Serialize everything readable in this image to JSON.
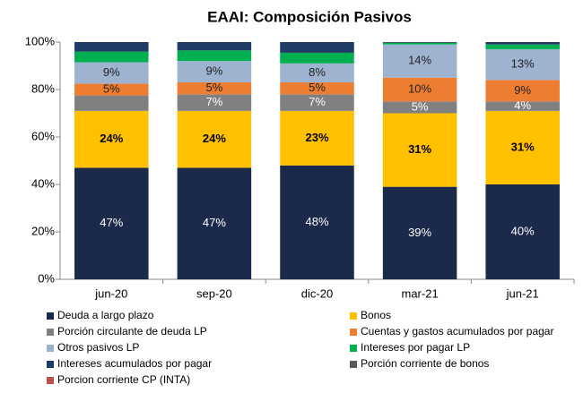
{
  "chart_data": {
    "type": "stacked_bar",
    "title": "EAAI: Composición Pasivos",
    "categories": [
      "jun-20",
      "sep-20",
      "dic-20",
      "mar-21",
      "jun-21"
    ],
    "series": [
      {
        "name": "Deuda a largo plazo",
        "color": "#1b2a4a",
        "values": [
          47,
          47,
          48,
          39,
          40
        ],
        "value_labels": [
          "47%",
          "47%",
          "48%",
          "39%",
          "40%"
        ]
      },
      {
        "name": "Bonos",
        "color": "#ffc000",
        "values": [
          24,
          24,
          23,
          31,
          31
        ],
        "value_labels": [
          "24%",
          "24%",
          "23%",
          "31%",
          "31%"
        ]
      },
      {
        "name": "Porción circulante de deuda LP",
        "color": "#808080",
        "values": [
          6.5,
          7,
          7,
          5,
          4
        ],
        "value_labels": [
          null,
          "7%",
          "7%",
          "5%",
          "4%"
        ]
      },
      {
        "name": "Cuentas y gastos acumulados por pagar",
        "color": "#ed7d31",
        "values": [
          5,
          5,
          5,
          10,
          9
        ],
        "value_labels": [
          "5%",
          "5%",
          "5%",
          "10%",
          "9%"
        ]
      },
      {
        "name": "Otros pasivos LP",
        "color": "#9db3cf",
        "values": [
          9,
          9,
          8,
          14,
          13
        ],
        "value_labels": [
          "9%",
          "9%",
          "8%",
          "14%",
          "13%"
        ]
      },
      {
        "name": "Intereses por pagar LP",
        "color": "#00b050",
        "values": [
          4.5,
          4.5,
          4.5,
          0.7,
          2
        ],
        "value_labels": [
          null,
          null,
          null,
          null,
          null
        ]
      },
      {
        "name": "Intereses acumulados por pagar",
        "color": "#1f3c66",
        "values": [
          4,
          3.5,
          4.5,
          0.3,
          1
        ],
        "value_labels": [
          null,
          null,
          null,
          null,
          null
        ]
      },
      {
        "name": "Porción corriente de bonos",
        "color": "#595959",
        "values": [
          0,
          0,
          0,
          0,
          0
        ],
        "value_labels": [
          null,
          null,
          null,
          null,
          null
        ]
      },
      {
        "name": "Porcion corriente CP (INTA)",
        "color": "#c0504d",
        "values": [
          0,
          0,
          0,
          0,
          0
        ],
        "value_labels": [
          null,
          null,
          null,
          null,
          null
        ]
      }
    ],
    "ylim": [
      0,
      100
    ],
    "yticks": [
      {
        "value": 0,
        "label": "0%"
      },
      {
        "value": 20,
        "label": "20%"
      },
      {
        "value": 40,
        "label": "40%"
      },
      {
        "value": 60,
        "label": "60%"
      },
      {
        "value": 80,
        "label": "80%"
      },
      {
        "value": 100,
        "label": "100%"
      }
    ],
    "grid": false,
    "legend": "bottom"
  }
}
